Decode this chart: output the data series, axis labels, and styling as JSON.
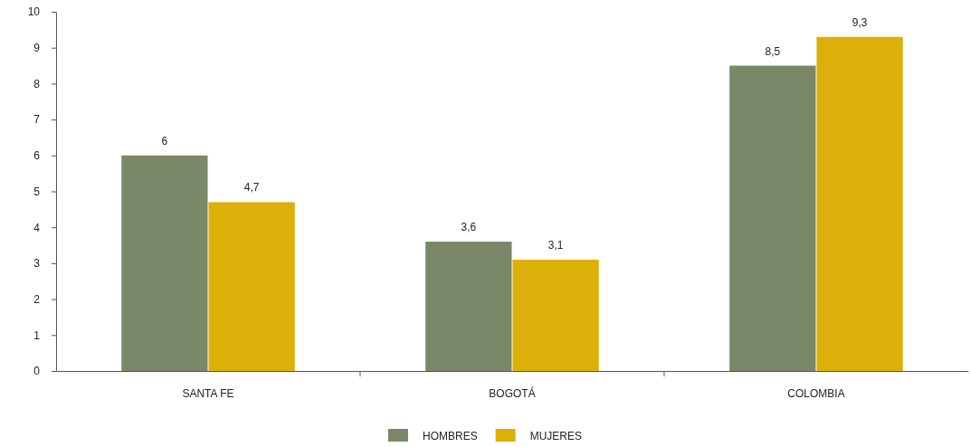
{
  "chart_data": {
    "type": "bar",
    "categories": [
      "SANTA FE",
      "BOGOTÁ",
      "COLOMBIA"
    ],
    "series": [
      {
        "name": "HOMBRES",
        "color": "#7a8769",
        "values": [
          6,
          3.6,
          8.5
        ],
        "value_labels": [
          "6",
          "3,6",
          "8,5"
        ]
      },
      {
        "name": "MUJERES",
        "color": "#dcb008",
        "values": [
          4.7,
          3.1,
          9.3
        ],
        "value_labels": [
          "4,7",
          "3,1",
          "9,3"
        ]
      }
    ],
    "ylim": [
      0,
      10
    ],
    "yticks": [
      0,
      1,
      2,
      3,
      4,
      5,
      6,
      7,
      8,
      9,
      10
    ],
    "grid": false,
    "legend": "bottom"
  }
}
